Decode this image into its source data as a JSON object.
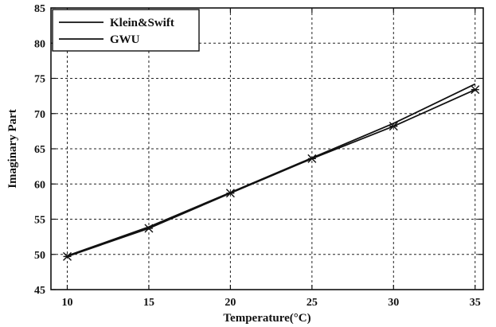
{
  "chart_data": {
    "type": "line",
    "title": "",
    "xlabel": "Temperature(°C)",
    "ylabel": "Imaginary Part",
    "xlim": [
      9,
      35.5
    ],
    "ylim": [
      45,
      85
    ],
    "xticks": [
      10,
      15,
      20,
      25,
      30,
      35
    ],
    "yticks": [
      45,
      50,
      55,
      60,
      65,
      70,
      75,
      80,
      85
    ],
    "grid": true,
    "legend_position": "top-left",
    "x": [
      10,
      15,
      20,
      25,
      30,
      35
    ],
    "series": [
      {
        "name": "Klein&Swift",
        "values": [
          49.8,
          53.9,
          58.8,
          63.7,
          68.6,
          74.2
        ],
        "marker": "none"
      },
      {
        "name": "GWU",
        "values": [
          49.7,
          53.7,
          58.7,
          63.6,
          68.2,
          73.4
        ],
        "marker": "cross"
      }
    ]
  }
}
